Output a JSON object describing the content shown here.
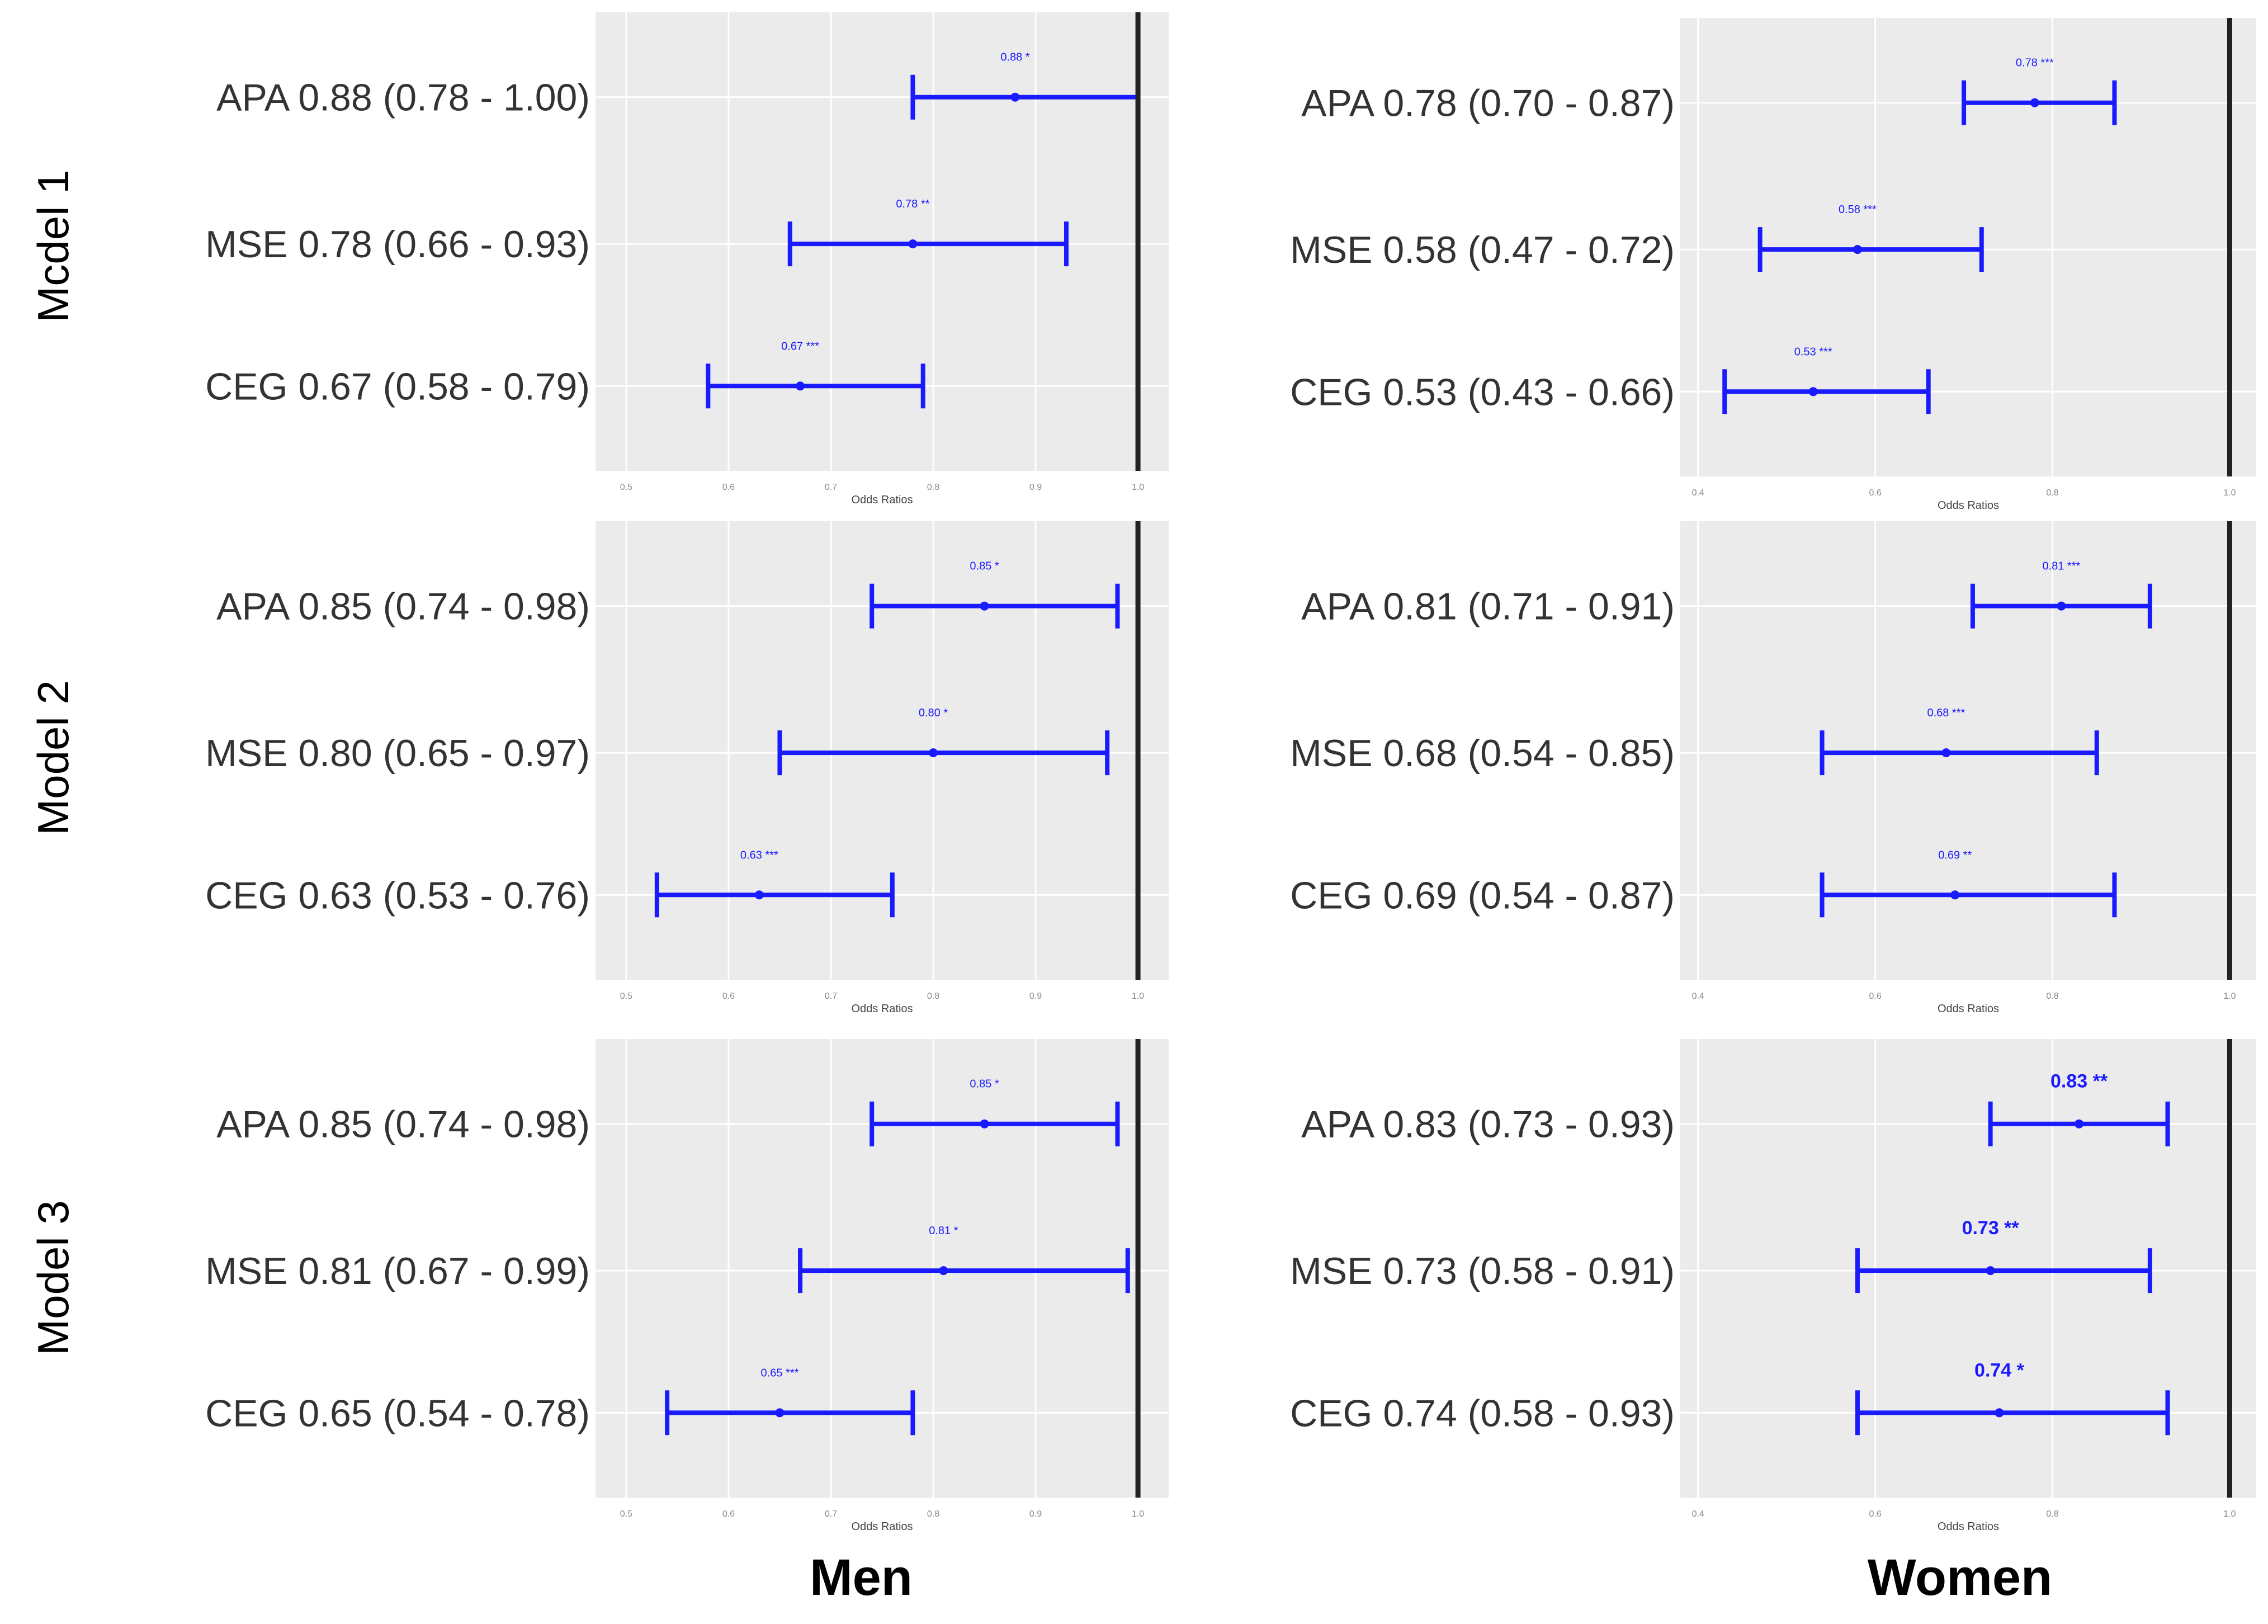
{
  "figure": {
    "column_labels": [
      "Men",
      "Women"
    ],
    "row_labels": [
      "Mcdel 1",
      "Model 2",
      "Model 3"
    ]
  },
  "colors": {
    "panel_bg": "#ebebeb",
    "grid": "#ffffff",
    "errorbar": "#1a1aff",
    "refline": "#222222",
    "text": "#333333",
    "tick": "#888888"
  },
  "chart_data": [
    {
      "type": "forest",
      "id": "men-model1",
      "group": "Men",
      "model": "Model 1",
      "xlabel": "Odds Ratios",
      "xlim": [
        0.47,
        1.03
      ],
      "reference_line": 1.0,
      "xticks": [
        "0.5",
        "0.6",
        "0.7",
        "0.8",
        "0.9",
        "1.0"
      ],
      "rows": [
        {
          "label": "APA",
          "text": "0.88 (0.78 - 1.00)",
          "or": 0.88,
          "lo": 0.78,
          "hi": 1.0,
          "annotation": "0.88 *"
        },
        {
          "label": "MSE",
          "text": "0.78 (0.66 - 0.93)",
          "or": 0.78,
          "lo": 0.66,
          "hi": 0.93,
          "annotation": "0.78 **"
        },
        {
          "label": "CEG",
          "text": "0.67 (0.58 - 0.79)",
          "or": 0.67,
          "lo": 0.58,
          "hi": 0.79,
          "annotation": "0.67 ***"
        }
      ]
    },
    {
      "type": "forest",
      "id": "women-model1",
      "group": "Women",
      "model": "Model 1",
      "xlabel": "Odds Ratios",
      "xlim": [
        0.38,
        1.03
      ],
      "reference_line": 1.0,
      "xticks": [
        "0.4",
        "0.6",
        "0.8",
        "1.0"
      ],
      "rows": [
        {
          "label": "APA",
          "text": "0.78 (0.70 - 0.87)",
          "or": 0.78,
          "lo": 0.7,
          "hi": 0.87,
          "annotation": "0.78 ***"
        },
        {
          "label": "MSE",
          "text": "0.58 (0.47 - 0.72)",
          "or": 0.58,
          "lo": 0.47,
          "hi": 0.72,
          "annotation": "0.58 ***"
        },
        {
          "label": "CEG",
          "text": "0.53 (0.43 - 0.66)",
          "or": 0.53,
          "lo": 0.43,
          "hi": 0.66,
          "annotation": "0.53 ***"
        }
      ]
    },
    {
      "type": "forest",
      "id": "men-model2",
      "group": "Men",
      "model": "Model 2",
      "xlabel": "Odds Ratios",
      "xlim": [
        0.47,
        1.03
      ],
      "reference_line": 1.0,
      "xticks": [
        "0.5",
        "0.6",
        "0.7",
        "0.8",
        "0.9",
        "1.0"
      ],
      "rows": [
        {
          "label": "APA",
          "text": "0.85 (0.74 - 0.98)",
          "or": 0.85,
          "lo": 0.74,
          "hi": 0.98,
          "annotation": "0.85 *"
        },
        {
          "label": "MSE",
          "text": "0.80 (0.65 - 0.97)",
          "or": 0.8,
          "lo": 0.65,
          "hi": 0.97,
          "annotation": "0.80 *"
        },
        {
          "label": "CEG",
          "text": "0.63 (0.53 - 0.76)",
          "or": 0.63,
          "lo": 0.53,
          "hi": 0.76,
          "annotation": "0.63 ***"
        }
      ]
    },
    {
      "type": "forest",
      "id": "women-model2",
      "group": "Women",
      "model": "Model 2",
      "xlabel": "Odds Ratios",
      "xlim": [
        0.38,
        1.03
      ],
      "reference_line": 1.0,
      "xticks": [
        "0.4",
        "0.6",
        "0.8",
        "1.0"
      ],
      "rows": [
        {
          "label": "APA",
          "text": "0.81 (0.71 - 0.91)",
          "or": 0.81,
          "lo": 0.71,
          "hi": 0.91,
          "annotation": "0.81 ***"
        },
        {
          "label": "MSE",
          "text": "0.68 (0.54 - 0.85)",
          "or": 0.68,
          "lo": 0.54,
          "hi": 0.85,
          "annotation": "0.68 ***"
        },
        {
          "label": "CEG",
          "text": "0.69 (0.54 - 0.87)",
          "or": 0.69,
          "lo": 0.54,
          "hi": 0.87,
          "annotation": "0.69 **"
        }
      ]
    },
    {
      "type": "forest",
      "id": "men-model3",
      "group": "Men",
      "model": "Model 3",
      "xlabel": "Odds Ratios",
      "xlim": [
        0.47,
        1.03
      ],
      "reference_line": 1.0,
      "xticks": [
        "0.5",
        "0.6",
        "0.7",
        "0.8",
        "0.9",
        "1.0"
      ],
      "rows": [
        {
          "label": "APA",
          "text": "0.85 (0.74 - 0.98)",
          "or": 0.85,
          "lo": 0.74,
          "hi": 0.98,
          "annotation": "0.85 *"
        },
        {
          "label": "MSE",
          "text": "0.81 (0.67 - 0.99)",
          "or": 0.81,
          "lo": 0.67,
          "hi": 0.99,
          "annotation": "0.81 *"
        },
        {
          "label": "CEG",
          "text": "0.65 (0.54 - 0.78)",
          "or": 0.65,
          "lo": 0.54,
          "hi": 0.78,
          "annotation": "0.65 ***"
        }
      ]
    },
    {
      "type": "forest",
      "id": "women-model3",
      "group": "Women",
      "model": "Model 3",
      "xlabel": "Odds Ratios",
      "xlim": [
        0.38,
        1.03
      ],
      "reference_line": 1.0,
      "xticks": [
        "0.4",
        "0.6",
        "0.8",
        "1.0"
      ],
      "rows": [
        {
          "label": "APA",
          "text": "0.83 (0.73 - 0.93)",
          "or": 0.83,
          "lo": 0.73,
          "hi": 0.93,
          "annotation": "0.83 **"
        },
        {
          "label": "MSE",
          "text": "0.73 (0.58 - 0.91)",
          "or": 0.73,
          "lo": 0.58,
          "hi": 0.91,
          "annotation": "0.73 **"
        },
        {
          "label": "CEG",
          "text": "0.74 (0.58 - 0.93)",
          "or": 0.74,
          "lo": 0.58,
          "hi": 0.93,
          "annotation": "0.74 *"
        }
      ]
    }
  ]
}
